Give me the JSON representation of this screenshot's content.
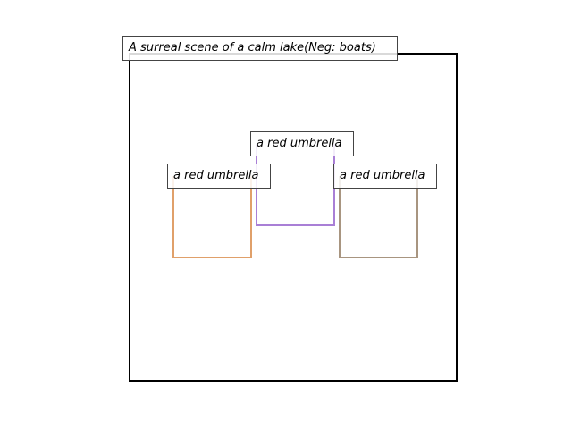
{
  "scene": {
    "title": "A surreal scene of a calm lake(Neg: boats)"
  },
  "boxes": [
    {
      "label": "a red umbrella",
      "color": "#e0a06a"
    },
    {
      "label": "a red umbrella",
      "color": "#a97fd6"
    },
    {
      "label": "a red umbrella",
      "color": "#a89580"
    }
  ]
}
